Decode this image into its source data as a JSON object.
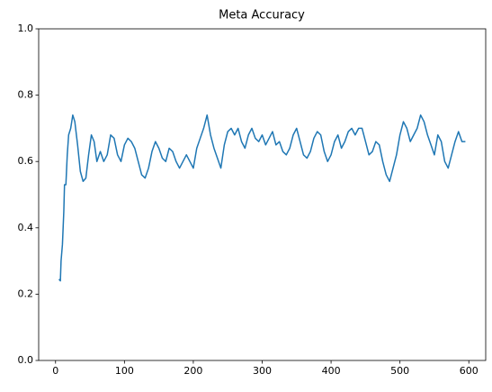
{
  "chart_data": {
    "type": "line",
    "title": "Meta Accuracy",
    "x": [
      5,
      7,
      8,
      10,
      12,
      13,
      15,
      17,
      19,
      22,
      25,
      28,
      32,
      36,
      40,
      44,
      48,
      52,
      56,
      60,
      65,
      70,
      75,
      80,
      85,
      90,
      95,
      100,
      105,
      110,
      115,
      120,
      125,
      130,
      135,
      140,
      145,
      150,
      155,
      160,
      165,
      170,
      175,
      180,
      185,
      190,
      195,
      200,
      205,
      210,
      215,
      220,
      225,
      230,
      235,
      240,
      245,
      250,
      255,
      260,
      265,
      270,
      275,
      280,
      285,
      290,
      295,
      300,
      305,
      310,
      315,
      320,
      325,
      330,
      335,
      340,
      345,
      350,
      355,
      360,
      365,
      370,
      375,
      380,
      385,
      390,
      395,
      400,
      405,
      410,
      415,
      420,
      425,
      430,
      435,
      440,
      445,
      450,
      455,
      460,
      465,
      470,
      475,
      480,
      485,
      490,
      495,
      500,
      505,
      510,
      515,
      520,
      525,
      530,
      535,
      540,
      545,
      550,
      555,
      560,
      565,
      570,
      575,
      580,
      585,
      590,
      595
    ],
    "series": [
      {
        "name": "Meta Accuracy",
        "color": "#1f77b4",
        "values": [
          0.245,
          0.24,
          0.3,
          0.35,
          0.45,
          0.53,
          0.53,
          0.62,
          0.68,
          0.7,
          0.74,
          0.72,
          0.65,
          0.57,
          0.54,
          0.55,
          0.62,
          0.68,
          0.66,
          0.6,
          0.63,
          0.6,
          0.62,
          0.68,
          0.67,
          0.62,
          0.6,
          0.65,
          0.67,
          0.66,
          0.64,
          0.6,
          0.56,
          0.55,
          0.58,
          0.63,
          0.66,
          0.64,
          0.61,
          0.6,
          0.64,
          0.63,
          0.6,
          0.58,
          0.6,
          0.62,
          0.6,
          0.58,
          0.64,
          0.67,
          0.7,
          0.74,
          0.68,
          0.64,
          0.61,
          0.58,
          0.65,
          0.69,
          0.7,
          0.68,
          0.7,
          0.66,
          0.64,
          0.68,
          0.7,
          0.67,
          0.66,
          0.68,
          0.65,
          0.67,
          0.69,
          0.65,
          0.66,
          0.63,
          0.62,
          0.64,
          0.68,
          0.7,
          0.66,
          0.62,
          0.61,
          0.63,
          0.67,
          0.69,
          0.68,
          0.63,
          0.6,
          0.62,
          0.66,
          0.68,
          0.64,
          0.66,
          0.69,
          0.7,
          0.68,
          0.7,
          0.7,
          0.66,
          0.62,
          0.63,
          0.66,
          0.65,
          0.6,
          0.56,
          0.54,
          0.58,
          0.62,
          0.68,
          0.72,
          0.7,
          0.66,
          0.68,
          0.7,
          0.74,
          0.72,
          0.68,
          0.65,
          0.62,
          0.68,
          0.66,
          0.6,
          0.58,
          0.62,
          0.66,
          0.69,
          0.66,
          0.66
        ]
      }
    ],
    "xlim": [
      -24.5,
      624.5
    ],
    "xticks": [
      0,
      100,
      200,
      300,
      400,
      500,
      600
    ],
    "ylim": [
      0,
      1
    ],
    "yticks": [
      {
        "value": 0,
        "label": "0.0"
      },
      0.2,
      0.4,
      0.6,
      0.8,
      {
        "value": 1,
        "label": "1.0"
      }
    ]
  }
}
